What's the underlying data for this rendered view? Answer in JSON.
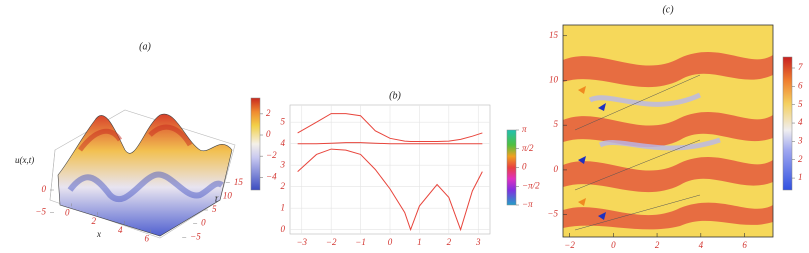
{
  "chart_data": [
    {
      "type": "surface",
      "title": "(a)",
      "xlabel": "x",
      "ylabel": "t",
      "zlabel": "u(x,t)",
      "xlim": [
        -1,
        7
      ],
      "xticks": [
        0,
        2,
        4,
        6
      ],
      "ylim": [
        -6,
        16
      ],
      "yticks": [
        {
          "value": -5,
          "label": "−5"
        },
        0,
        5,
        10,
        15
      ],
      "zlim": [
        -6,
        4
      ],
      "zticks": [
        {
          "value": -5,
          "label": "−5"
        },
        0
      ],
      "colorbar": {
        "lim": [
          -5.2,
          3.5
        ],
        "ticks": [
          2,
          0,
          {
            "value": -2,
            "label": "−2"
          },
          {
            "value": -4,
            "label": "−4"
          }
        ]
      }
    },
    {
      "type": "line",
      "title": "(b)",
      "x": [
        -3.14,
        -2.5,
        -2,
        -1.5,
        -1,
        -0.5,
        0,
        0.5,
        0.7,
        1,
        1.6,
        2,
        2.4,
        2.8,
        3.14
      ],
      "series": [
        {
          "color": "#e8453c",
          "values": [
            4.5,
            5.0,
            5.4,
            5.4,
            5.3,
            4.6,
            4.25,
            4.12,
            4.1,
            4.1,
            4.1,
            4.12,
            4.2,
            4.35,
            4.5
          ]
        },
        {
          "color": "#e8453c",
          "values": [
            4.0,
            4.0,
            4.02,
            4.05,
            4.05,
            4.02,
            4.0,
            4.0,
            4.0,
            4.0,
            4.0,
            4.0,
            4.0,
            4.0,
            4.0
          ]
        },
        {
          "color": "#e8453c",
          "values": [
            2.7,
            3.5,
            3.75,
            3.7,
            3.5,
            2.8,
            1.9,
            0.8,
            0,
            1.1,
            2.1,
            1.5,
            0,
            1.8,
            2.7
          ]
        }
      ],
      "xlim": [
        -3.4,
        3.4
      ],
      "xticks": [
        {
          "value": -3,
          "label": "−3"
        },
        {
          "value": -2,
          "label": "−2"
        },
        {
          "value": -1,
          "label": "−1"
        },
        0,
        1,
        2,
        3
      ],
      "ylim": [
        -0.2,
        5.8
      ],
      "yticks": [
        0,
        1,
        2,
        3,
        4,
        5
      ],
      "grid": true,
      "colorbar": {
        "lim": [
          -3.14159,
          3.14159
        ],
        "ticks": [
          {
            "value": 3.14159,
            "label": "π"
          },
          {
            "value": 1.5708,
            "label": "π/2"
          },
          0,
          {
            "value": -1.5708,
            "label": "−π/2"
          },
          {
            "value": -3.14159,
            "label": "−π"
          }
        ]
      }
    },
    {
      "type": "field",
      "title": "(c)",
      "xlim": [
        -2.3,
        7.3
      ],
      "xticks": [
        {
          "value": -2,
          "label": "−2"
        },
        0,
        2,
        4,
        6
      ],
      "ylim": [
        -7.5,
        16.2
      ],
      "yticks": [
        {
          "value": -5,
          "label": "−5"
        },
        0,
        5,
        10,
        15
      ],
      "colorbar": {
        "lim": [
          0.35,
          7.6
        ],
        "ticks": [
          1,
          2,
          3,
          4,
          5,
          6,
          7
        ]
      }
    }
  ]
}
